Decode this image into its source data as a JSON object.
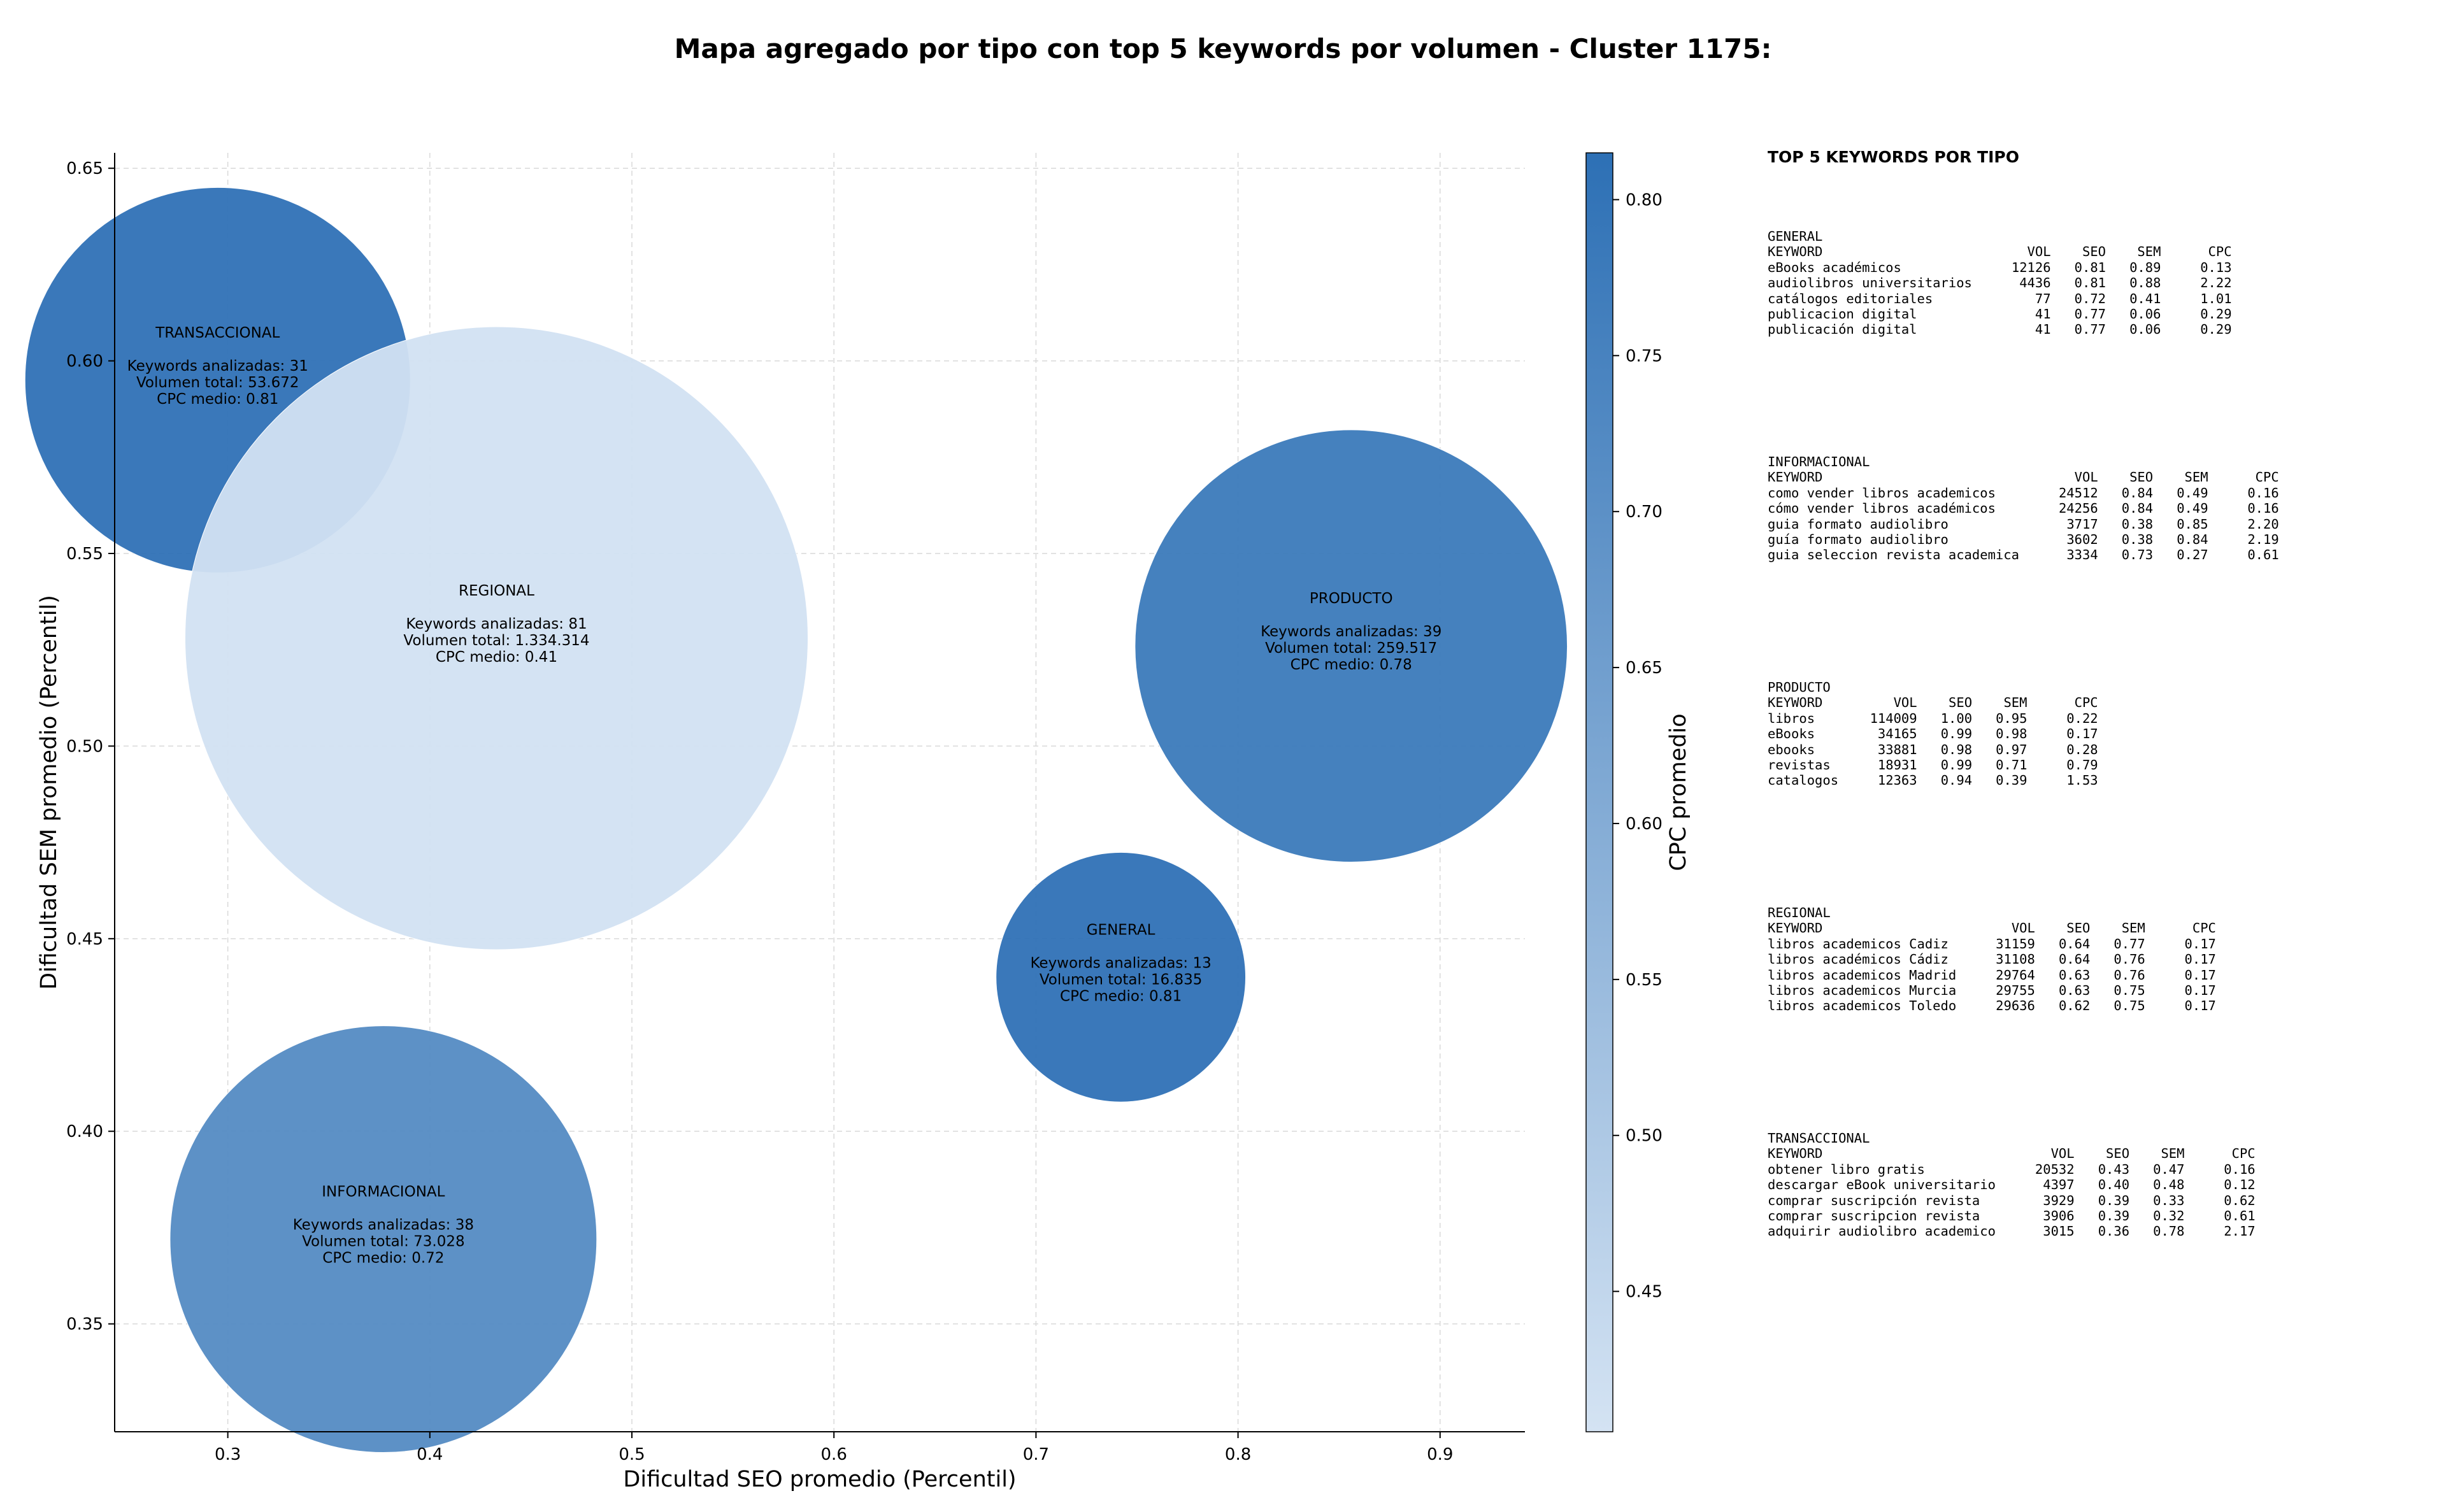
{
  "title": "Mapa agregado por tipo con top 5 keywords por volumen - Cluster 1175:",
  "chart_data": {
    "type": "scatter",
    "xlabel": "Dificultad SEO promedio (Percentil)",
    "ylabel": "Dificultad SEM promedio (Percentil)",
    "colorbar_label": "CPC promedio",
    "xlim": [
      0.244,
      0.942
    ],
    "ylim": [
      0.322,
      0.654
    ],
    "xticks": [
      "0.3",
      "0.4",
      "0.5",
      "0.6",
      "0.7",
      "0.8",
      "0.9"
    ],
    "yticks": [
      "0.35",
      "0.40",
      "0.45",
      "0.50",
      "0.55",
      "0.60",
      "0.65"
    ],
    "colorbar_range": [
      0.405,
      0.815
    ],
    "colorbar_ticks": [
      "0.45",
      "0.50",
      "0.55",
      "0.60",
      "0.65",
      "0.70",
      "0.75",
      "0.80"
    ],
    "grid": true,
    "colors": {
      "low": "#d4e3f3",
      "high": "#2d70b5"
    },
    "points": [
      {
        "name": "TRANSACCIONAL",
        "x": 0.295,
        "y": 0.595,
        "keywords_label": "Keywords analizadas: 31",
        "volume_label": "Volumen total: 53.672",
        "cpc_label": "CPC medio: 0.81",
        "cpc": 0.81,
        "keywords": 31
      },
      {
        "name": "REGIONAL",
        "x": 0.433,
        "y": 0.528,
        "keywords_label": "Keywords analizadas: 81",
        "volume_label": "Volumen total: 1.334.314",
        "cpc_label": "CPC medio: 0.41",
        "cpc": 0.41,
        "keywords": 81
      },
      {
        "name": "PRODUCTO",
        "x": 0.856,
        "y": 0.526,
        "keywords_label": "Keywords analizadas: 39",
        "volume_label": "Volumen total: 259.517",
        "cpc_label": "CPC medio: 0.78",
        "cpc": 0.78,
        "keywords": 39
      },
      {
        "name": "GENERAL",
        "x": 0.742,
        "y": 0.44,
        "keywords_label": "Keywords analizadas: 13",
        "volume_label": "Volumen total: 16.835",
        "cpc_label": "CPC medio: 0.81",
        "cpc": 0.81,
        "keywords": 13
      },
      {
        "name": "INFORMACIONAL",
        "x": 0.377,
        "y": 0.372,
        "keywords_label": "Keywords analizadas: 38",
        "volume_label": "Volumen total: 73.028",
        "cpc_label": "CPC medio: 0.72",
        "cpc": 0.72,
        "keywords": 38
      }
    ]
  },
  "panel": {
    "title": "TOP 5 KEYWORDS POR TIPO",
    "headers": [
      "KEYWORD",
      "VOL",
      "SEO",
      "SEM",
      "CPC"
    ],
    "groups": [
      {
        "name": "GENERAL",
        "rows": [
          [
            "eBooks académicos",
            "12126",
            "0.81",
            "0.89",
            "0.13"
          ],
          [
            "audiolibros universitarios",
            "4436",
            "0.81",
            "0.88",
            "2.22"
          ],
          [
            "catálogos editoriales",
            "77",
            "0.72",
            "0.41",
            "1.01"
          ],
          [
            "publicacion digital",
            "41",
            "0.77",
            "0.06",
            "0.29"
          ],
          [
            "publicación digital",
            "41",
            "0.77",
            "0.06",
            "0.29"
          ]
        ]
      },
      {
        "name": "INFORMACIONAL",
        "rows": [
          [
            "como vender libros academicos",
            "24512",
            "0.84",
            "0.49",
            "0.16"
          ],
          [
            "cómo vender libros académicos",
            "24256",
            "0.84",
            "0.49",
            "0.16"
          ],
          [
            "guia formato audiolibro",
            "3717",
            "0.38",
            "0.85",
            "2.20"
          ],
          [
            "guía formato audiolibro",
            "3602",
            "0.38",
            "0.84",
            "2.19"
          ],
          [
            "guia seleccion revista academica",
            "3334",
            "0.73",
            "0.27",
            "0.61"
          ]
        ]
      },
      {
        "name": "PRODUCTO",
        "rows": [
          [
            "libros",
            "114009",
            "1.00",
            "0.95",
            "0.22"
          ],
          [
            "eBooks",
            "34165",
            "0.99",
            "0.98",
            "0.17"
          ],
          [
            "ebooks",
            "33881",
            "0.98",
            "0.97",
            "0.28"
          ],
          [
            "revistas",
            "18931",
            "0.99",
            "0.71",
            "0.79"
          ],
          [
            "catalogos",
            "12363",
            "0.94",
            "0.39",
            "1.53"
          ]
        ]
      },
      {
        "name": "REGIONAL",
        "rows": [
          [
            "libros academicos Cadiz",
            "31159",
            "0.64",
            "0.77",
            "0.17"
          ],
          [
            "libros académicos Cádiz",
            "31108",
            "0.64",
            "0.76",
            "0.17"
          ],
          [
            "libros academicos Madrid",
            "29764",
            "0.63",
            "0.76",
            "0.17"
          ],
          [
            "libros academicos Murcia",
            "29755",
            "0.63",
            "0.75",
            "0.17"
          ],
          [
            "libros academicos Toledo",
            "29636",
            "0.62",
            "0.75",
            "0.17"
          ]
        ]
      },
      {
        "name": "TRANSACCIONAL",
        "rows": [
          [
            "obtener libro gratis",
            "20532",
            "0.43",
            "0.47",
            "0.16"
          ],
          [
            "descargar eBook universitario",
            "4397",
            "0.40",
            "0.48",
            "0.12"
          ],
          [
            "comprar suscripción revista",
            "3929",
            "0.39",
            "0.33",
            "0.62"
          ],
          [
            "comprar suscripcion revista",
            "3906",
            "0.39",
            "0.32",
            "0.61"
          ],
          [
            "adquirir audiolibro academico",
            "3015",
            "0.36",
            "0.78",
            "2.17"
          ]
        ]
      }
    ]
  }
}
